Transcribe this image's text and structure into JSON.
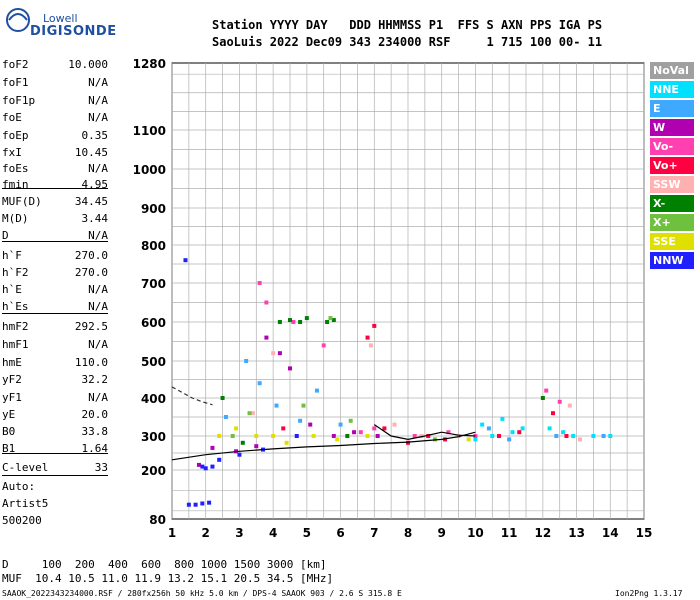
{
  "logo": {
    "line1": "Lowell",
    "line2": "DIGISONDE"
  },
  "header": {
    "row1": "Station YYYY DAY   DDD HHMMSS P1  FFS S AXN PPS IGA PS",
    "row2": "SaoLuis 2022 Dec09 343 234000 RSF     1 715 100 00- 11"
  },
  "params": [
    {
      "name": "foF2",
      "value": "10.000"
    },
    {
      "name": "foF1",
      "value": "N/A"
    },
    {
      "name": "foF1p",
      "value": "N/A"
    },
    {
      "name": "foE",
      "value": "N/A"
    },
    {
      "name": "foEp",
      "value": "0.35"
    },
    {
      "name": "fxI",
      "value": "10.45"
    },
    {
      "name": "foEs",
      "value": "N/A"
    },
    {
      "name": "fmin",
      "value": "4.95"
    },
    {
      "name": "MUF(D)",
      "value": "34.45"
    },
    {
      "name": "M(D)",
      "value": "3.44"
    },
    {
      "name": "D",
      "value": "N/A"
    },
    {
      "name": "h`F",
      "value": "270.0"
    },
    {
      "name": "h`F2",
      "value": "270.0"
    },
    {
      "name": "h`E",
      "value": "N/A"
    },
    {
      "name": "h`Es",
      "value": "N/A"
    },
    {
      "name": "hmF2",
      "value": "292.5"
    },
    {
      "name": "hmF1",
      "value": "N/A"
    },
    {
      "name": "hmE",
      "value": "110.0"
    },
    {
      "name": "yF2",
      "value": "32.2"
    },
    {
      "name": "yF1",
      "value": "N/A"
    },
    {
      "name": "yE",
      "value": "20.0"
    },
    {
      "name": "B0",
      "value": "33.8"
    },
    {
      "name": "B1",
      "value": "1.64"
    },
    {
      "name": "C-level",
      "value": "33"
    }
  ],
  "autoscale": {
    "label": "Auto:",
    "artist": "Artist5",
    "version": "500200"
  },
  "legend": [
    {
      "label": "NoVal",
      "color": "#a0a0a0"
    },
    {
      "label": "NNE",
      "color": "#00e0ff"
    },
    {
      "label": "E",
      "color": "#3fa9ff"
    },
    {
      "label": "W",
      "color": "#b000b0"
    },
    {
      "label": "Vo-",
      "color": "#ff40b0"
    },
    {
      "label": "Vo+",
      "color": "#ff0040"
    },
    {
      "label": "SSW",
      "color": "#ffb0b0"
    },
    {
      "label": "X-",
      "color": "#008000"
    },
    {
      "label": "X+",
      "color": "#70c040"
    },
    {
      "label": "SSE",
      "color": "#e0e000"
    },
    {
      "label": "NNW",
      "color": "#2020ff"
    }
  ],
  "footer": {
    "d_row": "D     100  200  400  600  800 1000 1500 3000 [km]",
    "muf_row": "MUF  10.4 10.5 11.0 11.9 13.2 15.1 20.5 34.5 [MHz]",
    "info": "SAAOK_2022343234000.RSF / 280fx256h 50 kHz 5.0 km / DPS-4 SAAOK 903 / 2.6 S 315.8 E",
    "version": "Ion2Png 1.3.17"
  },
  "chart_data": {
    "type": "scatter",
    "title": "",
    "xlabel": "",
    "ylabel": "",
    "xlim": [
      1,
      15
    ],
    "ylim": [
      80,
      1280
    ],
    "x_ticks": [
      1,
      2,
      3,
      4,
      5,
      6,
      7,
      8,
      9,
      10,
      11,
      12,
      13,
      14,
      15
    ],
    "y_ticks": [
      80,
      200,
      300,
      400,
      500,
      600,
      700,
      800,
      900,
      1000,
      1100,
      1280
    ],
    "grid": true,
    "legend_position": "right",
    "series": [
      {
        "name": "NNE",
        "color": "#00e0ff",
        "points": [
          [
            10.2,
            330
          ],
          [
            10.5,
            300
          ],
          [
            10.8,
            345
          ],
          [
            11.1,
            310
          ],
          [
            12.2,
            320
          ],
          [
            12.9,
            300
          ],
          [
            13.5,
            300
          ],
          [
            14.0,
            300
          ],
          [
            10.0,
            290
          ],
          [
            11.4,
            320
          ],
          [
            12.6,
            310
          ]
        ]
      },
      {
        "name": "E",
        "color": "#3fa9ff",
        "points": [
          [
            3.2,
            500
          ],
          [
            3.6,
            440
          ],
          [
            4.1,
            380
          ],
          [
            4.8,
            340
          ],
          [
            5.3,
            420
          ],
          [
            6.0,
            330
          ],
          [
            10.4,
            320
          ],
          [
            11.0,
            290
          ],
          [
            12.4,
            300
          ],
          [
            13.8,
            300
          ],
          [
            2.6,
            350
          ]
        ]
      },
      {
        "name": "W",
        "color": "#b000b0",
        "points": [
          [
            3.8,
            560
          ],
          [
            4.2,
            520
          ],
          [
            4.5,
            480
          ],
          [
            5.1,
            330
          ],
          [
            5.8,
            300
          ],
          [
            6.4,
            310
          ],
          [
            7.1,
            300
          ],
          [
            2.2,
            265
          ],
          [
            2.9,
            255
          ],
          [
            3.5,
            270
          ],
          [
            1.8,
            215
          ]
        ]
      },
      {
        "name": "Vo-",
        "color": "#ff40b0",
        "points": [
          [
            3.6,
            700
          ],
          [
            3.8,
            650
          ],
          [
            4.6,
            600
          ],
          [
            5.5,
            540
          ],
          [
            6.6,
            310
          ],
          [
            7.0,
            320
          ],
          [
            8.2,
            300
          ],
          [
            9.2,
            310
          ],
          [
            10.0,
            300
          ],
          [
            12.1,
            420
          ],
          [
            12.5,
            390
          ]
        ]
      },
      {
        "name": "Vo+",
        "color": "#ff0040",
        "points": [
          [
            6.8,
            560
          ],
          [
            7.0,
            590
          ],
          [
            7.3,
            320
          ],
          [
            8.0,
            280
          ],
          [
            8.6,
            300
          ],
          [
            9.1,
            290
          ],
          [
            10.7,
            300
          ],
          [
            11.3,
            310
          ],
          [
            12.3,
            360
          ],
          [
            12.7,
            300
          ],
          [
            4.3,
            320
          ]
        ]
      },
      {
        "name": "SSW",
        "color": "#ffb0b0",
        "points": [
          [
            4.0,
            520
          ],
          [
            6.9,
            540
          ],
          [
            7.6,
            330
          ],
          [
            8.4,
            300
          ],
          [
            9.5,
            300
          ],
          [
            12.8,
            380
          ],
          [
            13.1,
            290
          ],
          [
            3.4,
            360
          ]
        ]
      },
      {
        "name": "X-",
        "color": "#008000",
        "points": [
          [
            4.2,
            600
          ],
          [
            4.5,
            605
          ],
          [
            4.8,
            600
          ],
          [
            5.0,
            610
          ],
          [
            5.6,
            600
          ],
          [
            5.8,
            605
          ],
          [
            2.5,
            400
          ],
          [
            3.1,
            280
          ],
          [
            12.0,
            400
          ],
          [
            6.2,
            300
          ]
        ]
      },
      {
        "name": "X+",
        "color": "#70c040",
        "points": [
          [
            3.3,
            360
          ],
          [
            4.9,
            380
          ],
          [
            5.7,
            610
          ],
          [
            6.3,
            340
          ],
          [
            2.8,
            300
          ],
          [
            8.8,
            290
          ]
        ]
      },
      {
        "name": "SSE",
        "color": "#e0e000",
        "points": [
          [
            2.4,
            300
          ],
          [
            2.9,
            320
          ],
          [
            3.5,
            300
          ],
          [
            4.0,
            300
          ],
          [
            4.4,
            280
          ],
          [
            5.2,
            300
          ],
          [
            5.9,
            290
          ],
          [
            6.8,
            300
          ],
          [
            9.8,
            290
          ]
        ]
      },
      {
        "name": "NNW",
        "color": "#2020ff",
        "points": [
          [
            1.5,
            115
          ],
          [
            1.7,
            115
          ],
          [
            1.9,
            118
          ],
          [
            2.1,
            120
          ],
          [
            1.9,
            210
          ],
          [
            2.0,
            205
          ],
          [
            2.2,
            210
          ],
          [
            2.4,
            230
          ],
          [
            1.4,
            760
          ],
          [
            3.0,
            245
          ],
          [
            3.7,
            260
          ],
          [
            4.7,
            300
          ]
        ]
      }
    ],
    "traces": [
      {
        "name": "virtual-height-trace",
        "color": "#000000",
        "style": "solid",
        "points": [
          [
            1.0,
            230
          ],
          [
            2.0,
            245
          ],
          [
            3.0,
            255
          ],
          [
            4.0,
            262
          ],
          [
            5.0,
            268
          ],
          [
            6.0,
            272
          ],
          [
            7.0,
            278
          ],
          [
            8.0,
            282
          ],
          [
            9.0,
            290
          ],
          [
            9.5,
            298
          ],
          [
            10.0,
            310
          ]
        ]
      },
      {
        "name": "profile-trace",
        "color": "#000000",
        "style": "solid",
        "points": [
          [
            7.0,
            330
          ],
          [
            7.5,
            300
          ],
          [
            8.0,
            290
          ],
          [
            8.5,
            300
          ],
          [
            9.0,
            310
          ],
          [
            9.5,
            302
          ],
          [
            10.0,
            300
          ]
        ]
      },
      {
        "name": "muf-trace",
        "color": "#333333",
        "style": "dashed",
        "points": [
          [
            1.0,
            430
          ],
          [
            1.3,
            415
          ],
          [
            1.6,
            400
          ],
          [
            1.9,
            390
          ],
          [
            2.2,
            382
          ]
        ]
      }
    ]
  }
}
